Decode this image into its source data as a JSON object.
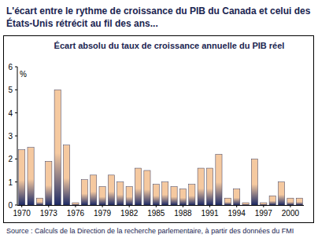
{
  "chart_data": {
    "type": "bar",
    "title": "L'écart entre le rythme de croissance du PIB du Canada et celui des États-Unis rétrécit au fil des ans...",
    "subtitle": "Écart absolu du taux de croissance annuelle du PIB réel",
    "y_label": "%",
    "source": "Source : Calculs de la Direction de la recherche parlementaire, à partir des données du FMI",
    "categories": [
      "1970",
      null,
      null,
      "1973",
      null,
      null,
      "1976",
      null,
      null,
      "1979",
      null,
      null,
      "1982",
      null,
      null,
      "1985",
      null,
      null,
      "1988",
      null,
      null,
      "1991",
      null,
      null,
      "1994",
      null,
      null,
      "1997",
      null,
      null,
      "2000",
      null
    ],
    "values": [
      2.4,
      2.5,
      0.3,
      1.9,
      5.0,
      2.6,
      0.1,
      1.1,
      1.3,
      0.8,
      1.3,
      1.0,
      0.8,
      1.6,
      1.5,
      0.9,
      1.0,
      0.8,
      0.7,
      0.9,
      1.6,
      1.6,
      2.2,
      0.3,
      0.7,
      0.1,
      2.0,
      0.1,
      0.4,
      1.0,
      0.3,
      0.3
    ],
    "color": "#f5c9a0",
    "ylim": [
      0,
      6
    ],
    "yticks": [
      0,
      1,
      2,
      3,
      4,
      5,
      6
    ],
    "grid": false
  }
}
